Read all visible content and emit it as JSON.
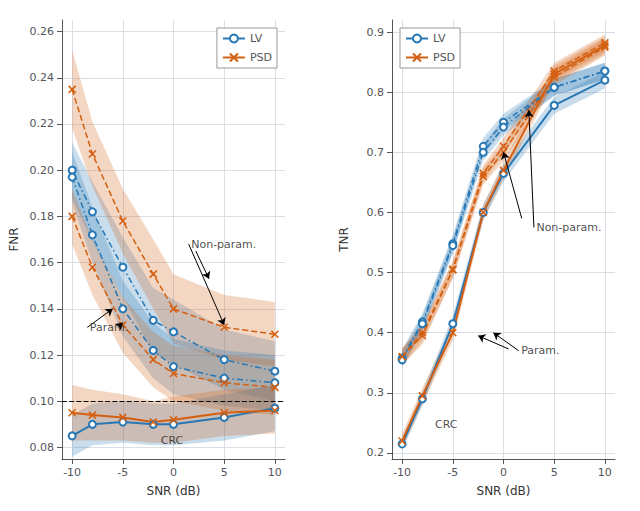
{
  "chart_data": [
    {
      "type": "line",
      "xlabel": "SNR (dB)",
      "ylabel": "FNR",
      "x": [
        -10,
        -8,
        -5,
        -2,
        0,
        5,
        10
      ],
      "xlim": [
        -11,
        11
      ],
      "xticks": [
        -10,
        -5,
        0,
        5,
        10
      ],
      "ylim": [
        0.075,
        0.265
      ],
      "yticks": [
        0.08,
        {
          "value": 0.1,
          "label": "0.10"
        },
        0.12,
        0.14,
        0.16,
        0.18,
        {
          "value": 0.2,
          "label": "0.20"
        },
        0.22,
        0.24,
        0.26
      ],
      "grid": true,
      "legend": "upper right",
      "hlines": [
        0.1
      ],
      "series": [
        {
          "color": "#2878b5",
          "line_style": "dashdot",
          "marker": "circle",
          "values": [
            0.2,
            0.182,
            0.158,
            0.135,
            0.13,
            0.118,
            0.113
          ],
          "lo": [
            0.188,
            0.169,
            0.145,
            0.121,
            0.116,
            0.105,
            0.1
          ],
          "hi": [
            0.212,
            0.195,
            0.171,
            0.149,
            0.144,
            0.131,
            0.126
          ]
        },
        {
          "color": "#d45f10",
          "line_style": "dashed",
          "marker": "x",
          "values": [
            0.235,
            0.207,
            0.178,
            0.155,
            0.14,
            0.132,
            0.129
          ],
          "lo": [
            0.218,
            0.193,
            0.164,
            0.14,
            0.125,
            0.118,
            0.115
          ],
          "hi": [
            0.252,
            0.221,
            0.192,
            0.17,
            0.155,
            0.146,
            0.143
          ]
        },
        {
          "color": "#2878b5",
          "line_style": "dashdot",
          "marker": "circle",
          "values": [
            0.197,
            0.172,
            0.14,
            0.122,
            0.115,
            0.11,
            0.108
          ],
          "lo": [
            0.186,
            0.16,
            0.128,
            0.11,
            0.103,
            0.098,
            0.096
          ],
          "hi": [
            0.208,
            0.184,
            0.152,
            0.134,
            0.127,
            0.122,
            0.12
          ]
        },
        {
          "color": "#d45f10",
          "line_style": "dashed",
          "marker": "x",
          "values": [
            0.18,
            0.158,
            0.133,
            0.118,
            0.112,
            0.108,
            0.106
          ],
          "lo": [
            0.168,
            0.146,
            0.121,
            0.106,
            0.1,
            0.096,
            0.094
          ],
          "hi": [
            0.192,
            0.17,
            0.145,
            0.13,
            0.124,
            0.12,
            0.118
          ]
        },
        {
          "name": "LV",
          "color": "#2878b5",
          "line_style": "solid",
          "marker": "circle",
          "values": [
            0.085,
            0.09,
            0.091,
            0.09,
            0.09,
            0.093,
            0.097
          ],
          "lo": [
            0.076,
            0.081,
            0.082,
            0.081,
            0.081,
            0.083,
            0.087
          ],
          "hi": [
            0.094,
            0.099,
            0.1,
            0.099,
            0.099,
            0.103,
            0.107
          ]
        },
        {
          "name": "PSD",
          "color": "#d45f10",
          "line_style": "solid",
          "marker": "x",
          "values": [
            0.095,
            0.094,
            0.093,
            0.091,
            0.092,
            0.095,
            0.096
          ],
          "lo": [
            0.083,
            0.083,
            0.083,
            0.082,
            0.082,
            0.085,
            0.086
          ],
          "hi": [
            0.107,
            0.105,
            0.103,
            0.1,
            0.102,
            0.105,
            0.106
          ]
        }
      ],
      "annotations": [
        {
          "text": "Non-param.",
          "x": 1.5,
          "y": 0.168,
          "arrows": [
            [
              [
                1.5,
                0.168
              ],
              [
                5,
                0.133
              ]
            ],
            [
              [
                2.2,
                0.165
              ],
              [
                3.5,
                0.153
              ]
            ]
          ]
        },
        {
          "text": "Param.",
          "x": -8.5,
          "y": 0.132,
          "arrows": [
            [
              [
                -8.5,
                0.132
              ],
              [
                -6,
                0.14
              ]
            ],
            [
              [
                -5.5,
                0.132
              ],
              [
                -5,
                0.134
              ]
            ]
          ]
        },
        {
          "text": "CRC",
          "x": -1.5,
          "y": 0.083,
          "arrows": []
        }
      ]
    },
    {
      "type": "line",
      "xlabel": "SNR (dB)",
      "ylabel": "TNR",
      "x": [
        -10,
        -8,
        -5,
        -2,
        0,
        5,
        10
      ],
      "xlim": [
        -11,
        11
      ],
      "xticks": [
        -10,
        -5,
        0,
        5,
        10
      ],
      "ylim": [
        0.19,
        0.92
      ],
      "yticks": [
        0.2,
        0.3,
        0.4,
        0.5,
        0.6,
        0.7,
        0.8,
        0.9
      ],
      "grid": true,
      "legend": "upper left",
      "series": [
        {
          "color": "#2878b5",
          "line_style": "dashdot",
          "marker": "circle",
          "values": [
            0.358,
            0.418,
            0.548,
            0.71,
            0.75,
            0.808,
            0.835
          ],
          "lo": [
            0.344,
            0.404,
            0.534,
            0.696,
            0.736,
            0.794,
            0.821
          ],
          "hi": [
            0.372,
            0.432,
            0.562,
            0.724,
            0.764,
            0.822,
            0.849
          ]
        },
        {
          "color": "#d45f10",
          "line_style": "dashed",
          "marker": "x",
          "values": [
            0.36,
            0.395,
            0.505,
            0.665,
            0.71,
            0.835,
            0.882
          ],
          "lo": [
            0.346,
            0.381,
            0.491,
            0.651,
            0.696,
            0.821,
            0.868
          ],
          "hi": [
            0.374,
            0.409,
            0.519,
            0.679,
            0.724,
            0.849,
            0.896
          ]
        },
        {
          "color": "#2878b5",
          "line_style": "dashdot",
          "marker": "circle",
          "values": [
            0.355,
            0.415,
            0.545,
            0.7,
            0.742,
            0.808,
            0.835
          ],
          "lo": [
            0.342,
            0.402,
            0.531,
            0.686,
            0.728,
            0.794,
            0.821
          ],
          "hi": [
            0.368,
            0.428,
            0.559,
            0.714,
            0.756,
            0.822,
            0.849
          ]
        },
        {
          "color": "#d45f10",
          "line_style": "dashed",
          "marker": "x",
          "values": [
            0.36,
            0.4,
            0.505,
            0.66,
            0.7,
            0.825,
            0.875
          ],
          "lo": [
            0.346,
            0.386,
            0.491,
            0.646,
            0.686,
            0.811,
            0.861
          ],
          "hi": [
            0.374,
            0.414,
            0.519,
            0.674,
            0.714,
            0.839,
            0.889
          ]
        },
        {
          "name": "LV",
          "color": "#2878b5",
          "line_style": "solid",
          "marker": "circle",
          "values": [
            0.215,
            0.29,
            0.415,
            0.6,
            0.665,
            0.778,
            0.82
          ],
          "lo": [
            0.205,
            0.278,
            0.402,
            0.587,
            0.651,
            0.764,
            0.806
          ],
          "hi": [
            0.225,
            0.302,
            0.428,
            0.613,
            0.679,
            0.792,
            0.834
          ]
        },
        {
          "name": "PSD",
          "color": "#d45f10",
          "line_style": "solid",
          "marker": "x",
          "values": [
            0.22,
            0.295,
            0.4,
            0.6,
            0.67,
            0.83,
            0.878
          ],
          "lo": [
            0.208,
            0.282,
            0.387,
            0.587,
            0.656,
            0.816,
            0.864
          ],
          "hi": [
            0.232,
            0.308,
            0.413,
            0.613,
            0.684,
            0.844,
            0.892
          ]
        }
      ],
      "annotations": [
        {
          "text": "Non-param.",
          "x": 3.0,
          "y": 0.575,
          "arrows": [
            [
              [
                3.0,
                0.575
              ],
              [
                2.5,
                0.77
              ]
            ],
            [
              [
                1.8,
                0.59
              ],
              [
                0.0,
                0.7
              ]
            ]
          ]
        },
        {
          "text": "Param.",
          "x": 1.5,
          "y": 0.37,
          "arrows": [
            [
              [
                1.5,
                0.37
              ],
              [
                -1.0,
                0.4
              ]
            ],
            [
              [
                0.5,
                0.373
              ],
              [
                -2.5,
                0.395
              ]
            ]
          ]
        },
        {
          "text": "CRC",
          "x": -7.0,
          "y": 0.248,
          "arrows": []
        }
      ]
    }
  ]
}
